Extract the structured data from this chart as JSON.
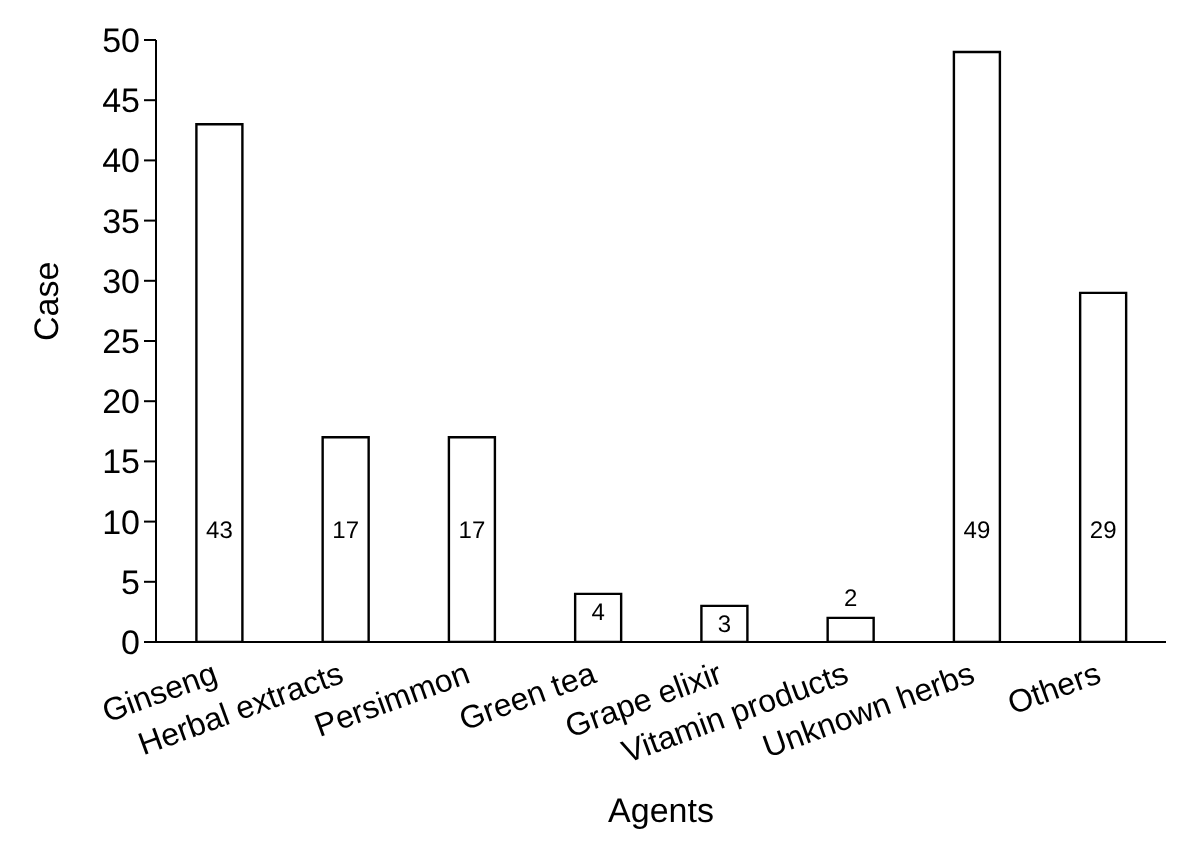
{
  "chart_data": {
    "type": "bar",
    "xlabel": "Agents",
    "ylabel": "Case",
    "categories": [
      "Ginseng",
      "Herbal extracts",
      "Persimmon",
      "Green tea",
      "Grape elixir",
      "Vitamin products",
      "Unknown herbs",
      "Others"
    ],
    "values": [
      43,
      17,
      17,
      4,
      3,
      2,
      49,
      29
    ],
    "color": "#ffffff",
    "data_labels": true,
    "grid": false,
    "ylim": [
      0,
      50
    ],
    "yticks": [
      0,
      5,
      10,
      15,
      20,
      25,
      30,
      35,
      40,
      45,
      50
    ]
  }
}
